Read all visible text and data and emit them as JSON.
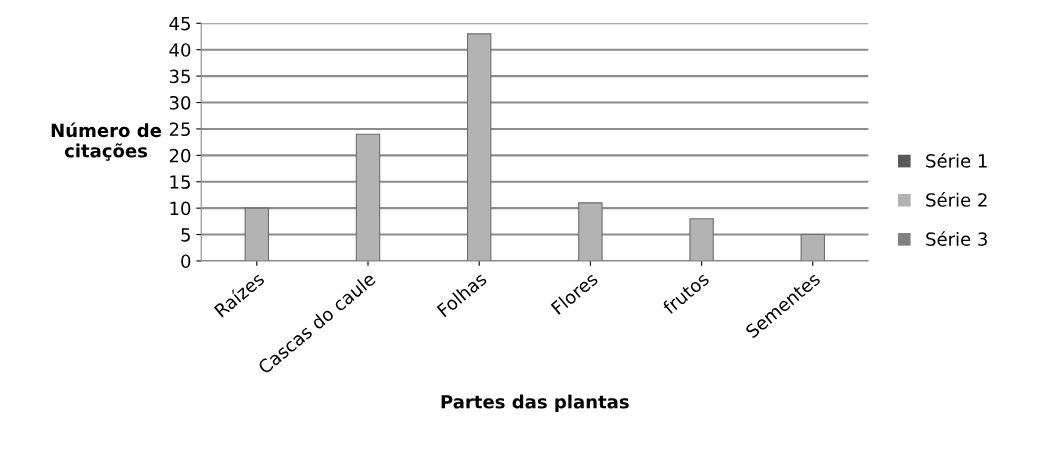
{
  "chart_data": {
    "type": "bar",
    "xlabel": "Partes das plantas",
    "ylabel": "Número de\ncitações",
    "categories": [
      "Raízes",
      "Cascas do caule",
      "Folhas",
      "Flores",
      "frutos",
      "Sementes"
    ],
    "series": [
      {
        "name": "Série 1",
        "color": "#595959",
        "values": [
          null,
          null,
          null,
          null,
          null,
          null
        ]
      },
      {
        "name": "Série 2",
        "color": "#b3b3b3",
        "values": [
          10,
          24,
          43,
          11,
          8,
          5
        ]
      },
      {
        "name": "Série 3",
        "color": "#808080",
        "values": [
          null,
          null,
          null,
          null,
          null,
          null
        ]
      }
    ],
    "ylim": [
      0,
      45
    ],
    "yticks": [
      0,
      5,
      10,
      15,
      20,
      25,
      30,
      35,
      40,
      45
    ],
    "grid": "y",
    "legend": "right"
  }
}
